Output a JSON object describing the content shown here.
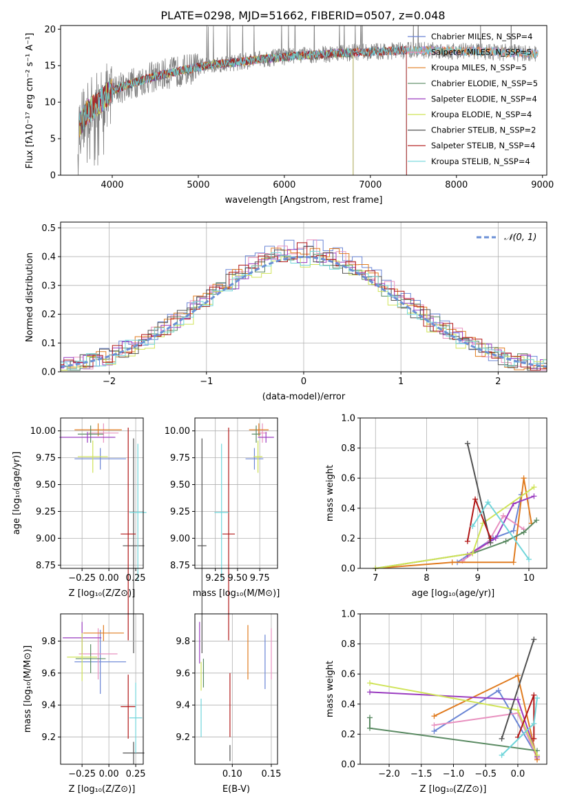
{
  "colors": {
    "chabrier_miles": "#6a85d5",
    "salpeter_miles": "#e890bf",
    "kroupa_miles": "#e07b1f",
    "chabrier_elodie": "#5a8a62",
    "salpeter_elodie": "#9a3cc0",
    "kroupa_elodie": "#cfe356",
    "chabrier_stelib": "#505050",
    "salpeter_stelib": "#b01515",
    "kroupa_stelib": "#6fd5da",
    "data": "#808080",
    "normal": "#6a8fd5"
  },
  "chart_data": [
    {
      "id": "spectrum",
      "type": "line",
      "title": "PLATE=0298, MJD=51662, FIBERID=0507, z=0.048",
      "xlabel": "wavelength [Angstrom, rest frame]",
      "ylabel": "Flux [fλ10⁻¹⁷ erg cm⁻² s⁻¹ A⁻¹]",
      "xlim": [
        3400,
        9050
      ],
      "ylim": [
        0,
        20.5
      ],
      "xticks": [
        "4000",
        "5000",
        "6000",
        "7000",
        "8000",
        "9000"
      ],
      "yticks": [
        "0",
        "5",
        "10",
        "15",
        "20"
      ],
      "grid": false,
      "legend_position": "top-right",
      "envelope": {
        "x": [
          3600,
          3700,
          3800,
          3900,
          4000,
          4200,
          4400,
          4600,
          4800,
          5000,
          5200,
          5400,
          5600,
          5800,
          6000,
          6200,
          6400,
          6600,
          6800,
          7000,
          7200,
          7400,
          7600,
          7800,
          8000,
          8200,
          8400,
          8600,
          8800,
          9000
        ],
        "y": [
          6.5,
          8.5,
          9.5,
          10.5,
          11.5,
          12.5,
          13.2,
          13.8,
          14.3,
          14.8,
          15.2,
          15.4,
          15.7,
          16.0,
          16.2,
          16.4,
          16.5,
          16.7,
          16.8,
          16.9,
          17.0,
          17.1,
          17.1,
          17.1,
          17.0,
          17.0,
          16.9,
          16.8,
          16.7,
          16.6
        ]
      },
      "series": [
        {
          "name": "Chabrier MILES, N_SSP=4",
          "cut_at": null
        },
        {
          "name": "Salpeter MILES, N_SSP=5",
          "cut_at": null
        },
        {
          "name": "Kroupa MILES, N_SSP=5",
          "cut_at": null
        },
        {
          "name": "Chabrier ELODIE, N_SSP=5",
          "cut_at": 6800
        },
        {
          "name": "Salpeter ELODIE, N_SSP=4",
          "cut_at": 6800
        },
        {
          "name": "Kroupa ELODIE, N_SSP=4",
          "cut_at": 6800
        },
        {
          "name": "Chabrier STELIB, N_SSP=2",
          "cut_at": 7420
        },
        {
          "name": "Salpeter STELIB, N_SSP=4",
          "cut_at": 7420
        },
        {
          "name": "Kroupa STELIB, N_SSP=4",
          "cut_at": null
        }
      ]
    },
    {
      "id": "residuals",
      "type": "histogram",
      "xlabel": "(data-model)/error",
      "ylabel": "Normed distribution",
      "xlim": [
        -2.5,
        2.5
      ],
      "ylim": [
        0,
        0.52
      ],
      "xticks": [
        "−2",
        "−1",
        "0",
        "1",
        "2"
      ],
      "yticks": [
        "0.0",
        "0.1",
        "0.2",
        "0.3",
        "0.4",
        "0.5"
      ],
      "grid": true,
      "legend_position": "top-right",
      "reference": {
        "name": "𝒩(0, 1)",
        "mean": 0,
        "sigma": 1
      },
      "bin_width": 0.1,
      "series_amplitude": [
        0.44,
        0.43,
        0.42,
        0.41,
        0.4,
        0.39,
        0.41,
        0.42,
        0.4
      ]
    },
    {
      "id": "age_vs_Z",
      "type": "errorbar",
      "xlabel": "Z [log₁₀(Z/Z⊙)]",
      "ylabel": "age  [log₁₀(age/yr)]",
      "xlim": [
        -0.45,
        0.32
      ],
      "ylim": [
        8.72,
        10.12
      ],
      "xticks": [
        "−0.25",
        "0.00",
        "0.25"
      ],
      "yticks": [
        "8.75",
        "9.00",
        "9.25",
        "9.50",
        "9.75",
        "10.00"
      ],
      "points": [
        {
          "x": -0.08,
          "y": 9.74,
          "xerr": 0.24,
          "yerr": 0.1
        },
        {
          "x": -0.05,
          "y": 9.98,
          "xerr": 0.14,
          "yerr": 0.09
        },
        {
          "x": -0.1,
          "y": 10.01,
          "xerr": 0.22,
          "yerr": 0.06
        },
        {
          "x": -0.17,
          "y": 9.97,
          "xerr": 0.12,
          "yerr": 0.08
        },
        {
          "x": -0.2,
          "y": 9.94,
          "xerr": 0.26,
          "yerr": 0.05
        },
        {
          "x": -0.15,
          "y": 9.76,
          "xerr": 0.14,
          "yerr": 0.15
        },
        {
          "x": 0.23,
          "y": 8.93,
          "xerr": 0.1,
          "yerr": 1.0
        },
        {
          "x": 0.18,
          "y": 9.04,
          "xerr": 0.07,
          "yerr": 0.99
        },
        {
          "x": 0.27,
          "y": 9.24,
          "xerr": 0.08,
          "yerr": 0.64
        }
      ]
    },
    {
      "id": "age_vs_mass",
      "type": "errorbar",
      "xlabel": "mass [log₁₀(M/M⊙)]",
      "ylabel": "",
      "xlim": [
        9.02,
        9.95
      ],
      "ylim": [
        8.72,
        10.12
      ],
      "xticks": [
        "9.25",
        "9.50",
        "9.75"
      ],
      "yticks": [
        "8.75",
        "9.00",
        "9.25",
        "9.50",
        "9.75",
        "10.00"
      ],
      "points": [
        {
          "x": 9.69,
          "y": 9.74,
          "xerr": 0.1,
          "yerr": 0.1
        },
        {
          "x": 9.78,
          "y": 9.98,
          "xerr": 0.05,
          "yerr": 0.09
        },
        {
          "x": 9.74,
          "y": 10.01,
          "xerr": 0.11,
          "yerr": 0.06
        },
        {
          "x": 9.71,
          "y": 9.97,
          "xerr": 0.05,
          "yerr": 0.08
        },
        {
          "x": 9.82,
          "y": 9.94,
          "xerr": 0.09,
          "yerr": 0.05
        },
        {
          "x": 9.73,
          "y": 9.76,
          "xerr": 0.05,
          "yerr": 0.15
        },
        {
          "x": 9.1,
          "y": 8.93,
          "xerr": 0.05,
          "yerr": 1.0
        },
        {
          "x": 9.4,
          "y": 9.04,
          "xerr": 0.07,
          "yerr": 0.99
        },
        {
          "x": 9.32,
          "y": 9.24,
          "xerr": 0.08,
          "yerr": 0.64
        }
      ]
    },
    {
      "id": "weight_vs_age",
      "type": "line",
      "xlabel": "age  [log₁₀(age/yr)]",
      "ylabel": "mass weight",
      "xlim": [
        6.7,
        10.35
      ],
      "ylim": [
        0,
        1
      ],
      "xticks": [
        "7",
        "8",
        "9",
        "10"
      ],
      "yticks": [
        "0.0",
        "0.2",
        "0.4",
        "0.6",
        "0.8",
        "1.0"
      ],
      "grid": true,
      "series": [
        {
          "x": [
            8.6,
            9.3,
            9.7,
            9.85
          ],
          "y": [
            0.04,
            0.2,
            0.25,
            0.49
          ]
        },
        {
          "x": [
            8.7,
            9.2,
            9.5,
            9.9
          ],
          "y": [
            0.05,
            0.17,
            0.35,
            0.26
          ]
        },
        {
          "x": [
            7.0,
            8.5,
            9.7,
            9.9,
            10.05
          ],
          "y": [
            0.0,
            0.04,
            0.04,
            0.6,
            0.3
          ]
        },
        {
          "x": [
            7.0,
            8.9,
            9.55,
            9.9,
            10.15
          ],
          "y": [
            0.0,
            0.1,
            0.18,
            0.24,
            0.32
          ]
        },
        {
          "x": [
            8.8,
            9.35,
            9.7,
            10.1
          ],
          "y": [
            0.09,
            0.2,
            0.43,
            0.48
          ]
        },
        {
          "x": [
            7.0,
            8.9,
            9.1,
            10.1
          ],
          "y": [
            0.0,
            0.1,
            0.3,
            0.54
          ]
        },
        {
          "x": [
            8.8,
            9.25
          ],
          "y": [
            0.83,
            0.17
          ]
        },
        {
          "x": [
            8.8,
            8.95,
            9.25
          ],
          "y": [
            0.18,
            0.46,
            0.2
          ]
        },
        {
          "x": [
            8.9,
            9.2,
            10.0
          ],
          "y": [
            0.28,
            0.44,
            0.06
          ]
        }
      ]
    },
    {
      "id": "mass_vs_Z",
      "type": "errorbar",
      "xlabel": "Z [log₁₀(Z/Z⊙)]",
      "ylabel": "mass [log₁₀(M/M⊙)]",
      "xlim": [
        -0.45,
        0.32
      ],
      "ylim": [
        9.03,
        9.97
      ],
      "xticks": [
        "−0.25",
        "0.00",
        "0.25"
      ],
      "yticks": [
        "9.2",
        "9.4",
        "9.6",
        "9.8"
      ],
      "points": [
        {
          "x": -0.08,
          "y": 9.67,
          "xerr": 0.24,
          "yerr": 0.2
        },
        {
          "x": -0.1,
          "y": 9.72,
          "xerr": 0.18,
          "yerr": 0.16
        },
        {
          "x": -0.05,
          "y": 9.85,
          "xerr": 0.19,
          "yerr": 0.05
        },
        {
          "x": -0.17,
          "y": 9.69,
          "xerr": 0.14,
          "yerr": 0.09
        },
        {
          "x": -0.25,
          "y": 9.82,
          "xerr": 0.18,
          "yerr": 0.1
        },
        {
          "x": -0.25,
          "y": 9.7,
          "xerr": 0.14,
          "yerr": 0.15
        },
        {
          "x": 0.23,
          "y": 9.1,
          "xerr": 0.1,
          "yerr": 0.07
        },
        {
          "x": 0.18,
          "y": 9.39,
          "xerr": 0.07,
          "yerr": 0.2
        },
        {
          "x": 0.25,
          "y": 9.32,
          "xerr": 0.06,
          "yerr": 0.22
        }
      ]
    },
    {
      "id": "mass_vs_ebv",
      "type": "errorbar",
      "xlabel": "E(B-V)",
      "ylabel": "",
      "xlim": [
        0.052,
        0.158
      ],
      "ylim": [
        9.03,
        9.97
      ],
      "xticks": [
        "0.10",
        "0.15"
      ],
      "yticks": [
        "9.2",
        "9.4",
        "9.6",
        "9.8"
      ],
      "points": [
        {
          "x": 0.142,
          "y": 9.67,
          "xerr": 0,
          "yerr": 0.17
        },
        {
          "x": 0.15,
          "y": 9.72,
          "xerr": 0,
          "yerr": 0.16
        },
        {
          "x": 0.12,
          "y": 9.73,
          "xerr": 0,
          "yerr": 0.17
        },
        {
          "x": 0.063,
          "y": 9.6,
          "xerr": 0,
          "yerr": 0.09
        },
        {
          "x": 0.058,
          "y": 9.79,
          "xerr": 0,
          "yerr": 0.13
        },
        {
          "x": 0.06,
          "y": 9.58,
          "xerr": 0,
          "yerr": 0.09
        },
        {
          "x": 0.097,
          "y": 9.1,
          "xerr": 0,
          "yerr": 0.05
        },
        {
          "x": 0.097,
          "y": 9.4,
          "xerr": 0,
          "yerr": 0.2
        },
        {
          "x": 0.06,
          "y": 9.32,
          "xerr": 0,
          "yerr": 0.12
        }
      ]
    },
    {
      "id": "weight_vs_Z",
      "type": "line",
      "xlabel": "Z [log₁₀(Z/Z⊙)]",
      "ylabel": "mass weight",
      "xlim": [
        -2.45,
        0.45
      ],
      "ylim": [
        0,
        1
      ],
      "xticks": [
        "−2.0",
        "−1.5",
        "−1.0",
        "−0.5",
        "0.0"
      ],
      "yticks": [
        "0.0",
        "0.2",
        "0.4",
        "0.6",
        "0.8",
        "1.0"
      ],
      "grid": true,
      "series": [
        {
          "x": [
            -1.3,
            -0.3,
            0.3
          ],
          "y": [
            0.22,
            0.49,
            0.05
          ]
        },
        {
          "x": [
            -1.3,
            0.0,
            0.3
          ],
          "y": [
            0.26,
            0.34,
            0.04
          ]
        },
        {
          "x": [
            -1.3,
            0.0,
            0.3
          ],
          "y": [
            0.32,
            0.59,
            0.03
          ]
        },
        {
          "x": [
            -2.3,
            -2.3,
            0.3
          ],
          "y": [
            0.31,
            0.24,
            0.09
          ]
        },
        {
          "x": [
            -2.3,
            0.0,
            0.3
          ],
          "y": [
            0.48,
            0.43,
            0.05
          ]
        },
        {
          "x": [
            -2.3,
            0.0,
            0.3
          ],
          "y": [
            0.54,
            0.36,
            0.06
          ]
        },
        {
          "x": [
            -0.25,
            0.25
          ],
          "y": [
            0.17,
            0.83
          ]
        },
        {
          "x": [
            0.0,
            0.25,
            0.25
          ],
          "y": [
            0.18,
            0.46,
            0.17
          ]
        },
        {
          "x": [
            -0.25,
            0.25,
            0.3
          ],
          "y": [
            0.06,
            0.27,
            0.44
          ]
        }
      ]
    }
  ]
}
